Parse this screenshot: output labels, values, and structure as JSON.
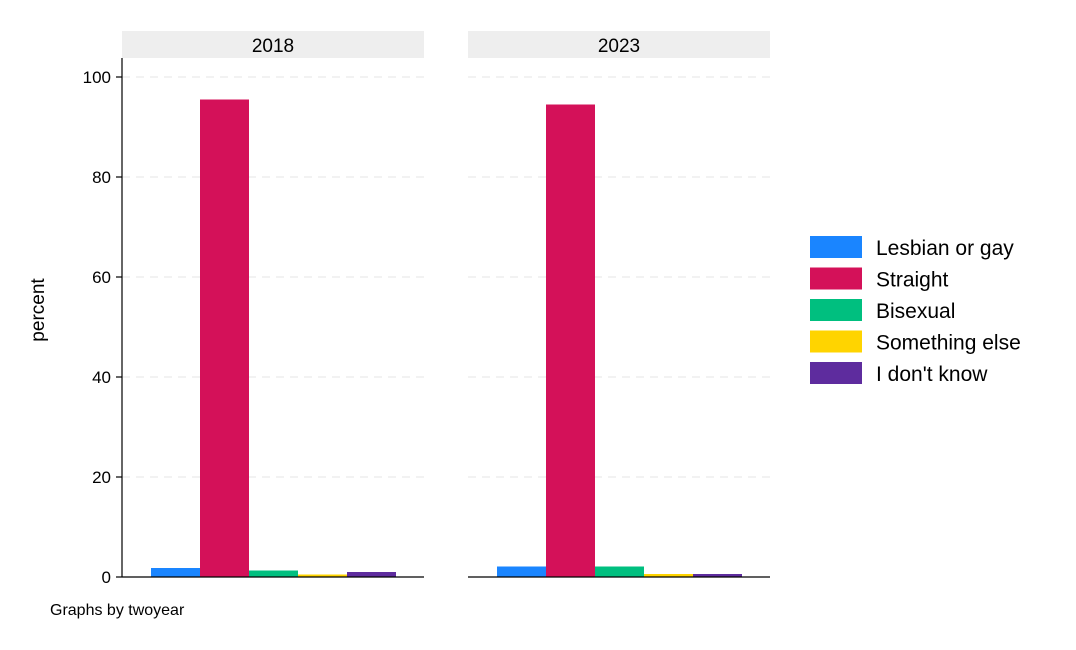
{
  "chart_data": {
    "type": "bar",
    "ylabel": "percent",
    "ylim": [
      0,
      100
    ],
    "yticks": [
      0,
      20,
      40,
      60,
      80,
      100
    ],
    "grid": true,
    "legend_position": "right",
    "note": "Graphs by twoyear",
    "categories": [
      "Lesbian or gay",
      "Straight",
      "Bisexual",
      "Something else",
      "I don't know"
    ],
    "colors": [
      "#1a85ff",
      "#d41159",
      "#00bf7f",
      "#ffd400",
      "#5e2c9e"
    ],
    "panels": [
      {
        "title": "2018",
        "values": [
          1.8,
          95.5,
          1.3,
          0.5,
          1.0
        ]
      },
      {
        "title": "2023",
        "values": [
          2.1,
          94.5,
          2.1,
          0.6,
          0.6
        ]
      }
    ]
  }
}
